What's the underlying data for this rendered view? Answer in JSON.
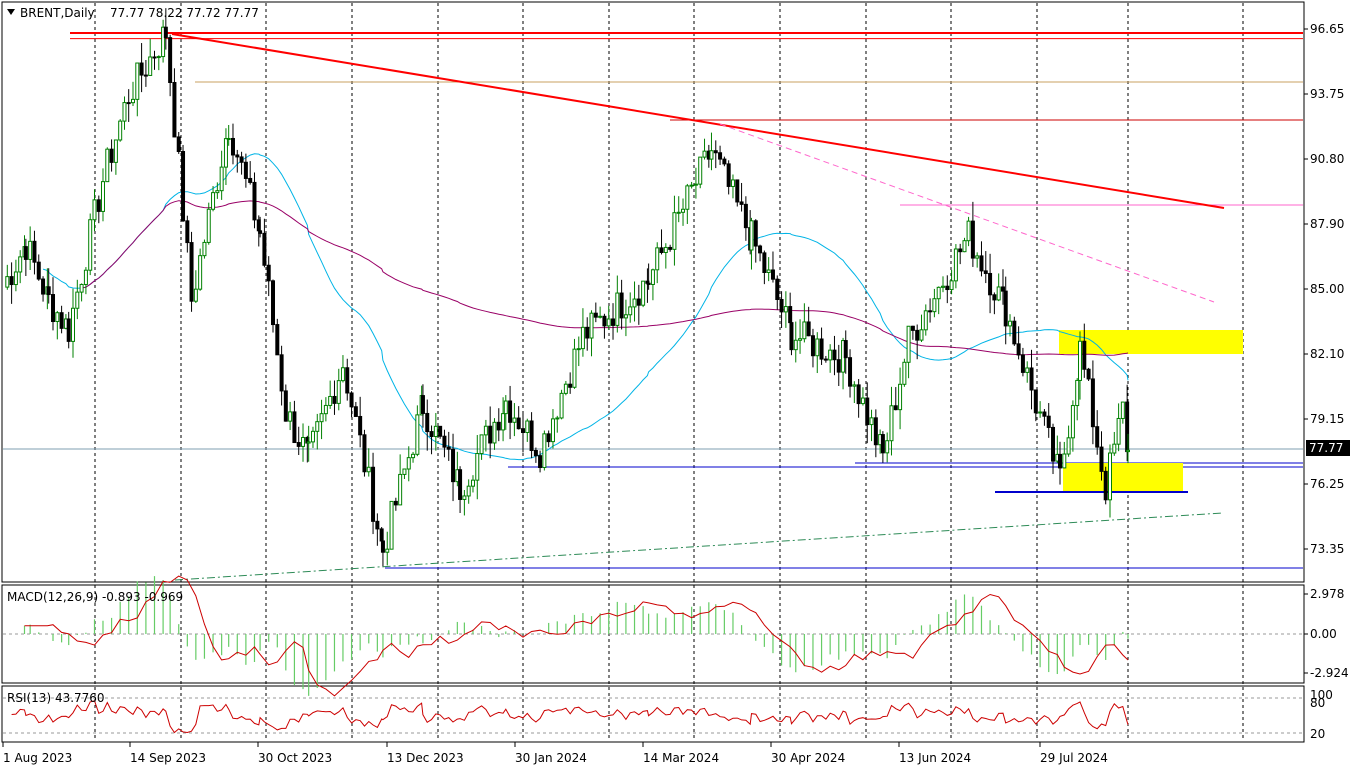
{
  "header": {
    "symbol": "BRENT,Daily",
    "ohlc": "77.77 78.22 77.72 77.77"
  },
  "price_axis": {
    "ticks": [
      "96.65",
      "93.75",
      "90.80",
      "87.90",
      "85.00",
      "82.10",
      "79.15",
      "76.25",
      "73.35"
    ],
    "current_price_label": "77.77"
  },
  "macd": {
    "label": "MACD(12,26,9) -0.893 -0.969",
    "ticks": [
      "2.978",
      "0.00",
      "-2.924"
    ]
  },
  "rsi": {
    "label": "RSI(13) 43.7760",
    "ticks": [
      "100",
      "80",
      "20"
    ]
  },
  "time_axis": {
    "labels": [
      "1 Aug 2023",
      "14 Sep 2023",
      "30 Oct 2023",
      "13 Dec 2023",
      "30 Jan 2024",
      "14 Mar 2024",
      "30 Apr 2024",
      "13 Jun 2024",
      "29 Jul 2024"
    ]
  },
  "colors": {
    "up_candle": "#008000",
    "down_candle": "#000000",
    "resistance": "#ff0000",
    "support": "#0000cc",
    "ma_fast": "#00b4e6",
    "ma_slow": "#990066",
    "highlight": "#ffff00",
    "macd_hist": "#66cc66",
    "signal": "#cc0000"
  },
  "chart_data": {
    "type": "candlestick",
    "symbol": "BRENT",
    "timeframe": "Daily",
    "last": {
      "open": 77.77,
      "high": 78.22,
      "low": 77.72,
      "close": 77.77
    },
    "ylim": [
      72.3,
      97.6
    ],
    "close_path": [
      {
        "date": "2023-08-01",
        "close": 85.1
      },
      {
        "date": "2023-08-09",
        "close": 87.0
      },
      {
        "date": "2023-08-17",
        "close": 84.5
      },
      {
        "date": "2023-08-24",
        "close": 83.2
      },
      {
        "date": "2023-09-05",
        "close": 89.9
      },
      {
        "date": "2023-09-14",
        "close": 93.7
      },
      {
        "date": "2023-09-27",
        "close": 96.5
      },
      {
        "date": "2023-10-06",
        "close": 84.5
      },
      {
        "date": "2023-10-19",
        "close": 92.4
      },
      {
        "date": "2023-10-30",
        "close": 87.5
      },
      {
        "date": "2023-11-08",
        "close": 79.5
      },
      {
        "date": "2023-11-16",
        "close": 77.4
      },
      {
        "date": "2023-11-28",
        "close": 81.7
      },
      {
        "date": "2023-12-12",
        "close": 73.3
      },
      {
        "date": "2023-12-26",
        "close": 79.8
      },
      {
        "date": "2024-01-08",
        "close": 76.1
      },
      {
        "date": "2024-01-24",
        "close": 80.0
      },
      {
        "date": "2024-02-05",
        "close": 77.8
      },
      {
        "date": "2024-02-20",
        "close": 82.9
      },
      {
        "date": "2024-03-14",
        "close": 85.4
      },
      {
        "date": "2024-04-05",
        "close": 91.2
      },
      {
        "date": "2024-04-19",
        "close": 87.3
      },
      {
        "date": "2024-05-03",
        "close": 83.0
      },
      {
        "date": "2024-05-22",
        "close": 81.9
      },
      {
        "date": "2024-06-04",
        "close": 77.5
      },
      {
        "date": "2024-06-13",
        "close": 82.7
      },
      {
        "date": "2024-07-04",
        "close": 87.4
      },
      {
        "date": "2024-07-17",
        "close": 84.1
      },
      {
        "date": "2024-08-05",
        "close": 76.5
      },
      {
        "date": "2024-08-12",
        "close": 82.3
      },
      {
        "date": "2024-08-21",
        "close": 76.1
      },
      {
        "date": "2024-08-27",
        "close": 79.6
      },
      {
        "date": "2024-09-03",
        "close": 77.77
      }
    ],
    "horizontal_levels": [
      96.65,
      96.4,
      94.4,
      92.6,
      88.2,
      83.1,
      77.7,
      77.2,
      76.0,
      72.4
    ],
    "macd": {
      "value": -0.893,
      "signal": -0.969,
      "ylim": [
        -2.924,
        2.978
      ]
    },
    "rsi": {
      "value": 43.776,
      "levels": [
        80,
        20
      ],
      "ylim": [
        0,
        100
      ]
    }
  }
}
